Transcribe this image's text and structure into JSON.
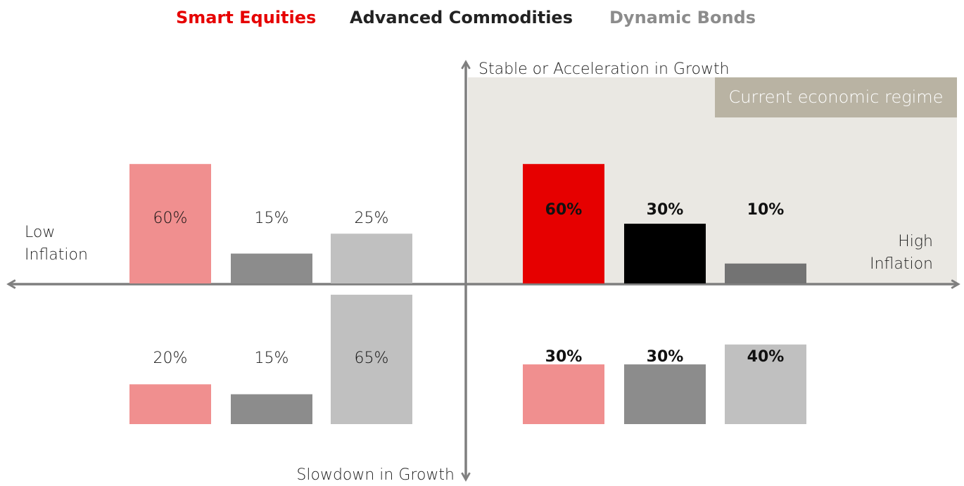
{
  "chart_data": {
    "type": "bar",
    "series": [
      {
        "name": "Smart Equities",
        "color": "#e60000"
      },
      {
        "name": "Advanced Commodities",
        "color": "#222222"
      },
      {
        "name": "Dynamic Bonds",
        "color": "#8c8c8c"
      }
    ],
    "x_axis_labels": {
      "left": "Low Inflation",
      "right": "High Inflation"
    },
    "y_axis_labels": {
      "top": "Stable or Acceleration in Growth",
      "bottom": "Slowdown in Growth"
    },
    "annotation": "Current economic regime",
    "quadrants": [
      {
        "values": [
          60,
          15,
          25
        ],
        "value_labels": [
          "60%",
          "15%",
          "25%"
        ],
        "colors": [
          "#f08f8f",
          "#8c8c8c",
          "#c0c0c0"
        ],
        "bold": false
      },
      {
        "values": [
          60,
          30,
          10
        ],
        "value_labels": [
          "60%",
          "30%",
          "10%"
        ],
        "colors": [
          "#e60000",
          "#000000",
          "#737373"
        ],
        "bold": true
      },
      {
        "values": [
          20,
          15,
          65
        ],
        "value_labels": [
          "20%",
          "15%",
          "65%"
        ],
        "colors": [
          "#f08f8f",
          "#8c8c8c",
          "#c0c0c0"
        ],
        "bold": false
      },
      {
        "values": [
          30,
          30,
          40
        ],
        "value_labels": [
          "30%",
          "30%",
          "40%"
        ],
        "colors": [
          "#f08f8f",
          "#8c8c8c",
          "#c0c0c0"
        ],
        "bold": true
      }
    ]
  }
}
